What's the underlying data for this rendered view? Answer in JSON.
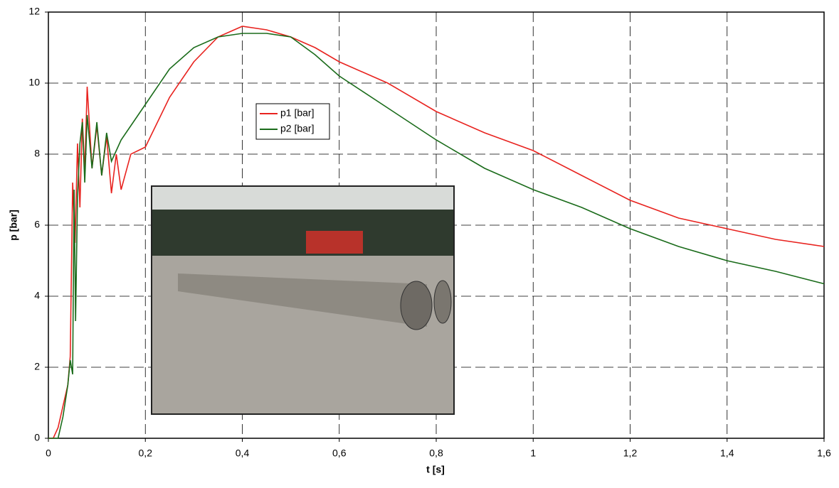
{
  "chart_data": {
    "type": "line",
    "x_label": "t [s]",
    "y_label": "p [bar]",
    "xlim": [
      0,
      1.6
    ],
    "ylim": [
      0,
      12
    ],
    "xticks": [
      0,
      {
        "value": 0.2,
        "label": "0,2"
      },
      {
        "value": 0.4,
        "label": "0,4"
      },
      {
        "value": 0.6,
        "label": "0,6"
      },
      {
        "value": 0.8,
        "label": "0,8"
      },
      1,
      {
        "value": 1.2,
        "label": "1,2"
      },
      {
        "value": 1.4,
        "label": "1,4"
      },
      {
        "value": 1.6,
        "label": "1,6"
      }
    ],
    "yticks": [
      0,
      2,
      4,
      6,
      8,
      10,
      12
    ],
    "grid": true,
    "legend": "upper center",
    "series": [
      {
        "name": "p1 [bar]",
        "color": "#e8231f",
        "x": [
          0,
          0.01,
          0.02,
          0.03,
          0.04,
          0.045,
          0.05,
          0.055,
          0.06,
          0.065,
          0.07,
          0.075,
          0.08,
          0.09,
          0.1,
          0.11,
          0.12,
          0.13,
          0.14,
          0.15,
          0.17,
          0.2,
          0.25,
          0.3,
          0.35,
          0.4,
          0.45,
          0.5,
          0.55,
          0.6,
          0.7,
          0.8,
          0.9,
          1.0,
          1.1,
          1.2,
          1.3,
          1.4,
          1.5,
          1.6
        ],
        "values": [
          0,
          0,
          0.3,
          0.9,
          1.5,
          2.3,
          7.2,
          5.5,
          8.3,
          6.5,
          9.0,
          7.5,
          9.9,
          7.6,
          8.8,
          7.4,
          8.5,
          6.9,
          8.0,
          7.0,
          8.0,
          8.2,
          9.6,
          10.6,
          11.3,
          11.6,
          11.5,
          11.3,
          11.0,
          10.6,
          10.0,
          9.2,
          8.6,
          8.1,
          7.4,
          6.7,
          6.2,
          5.9,
          5.6,
          5.4
        ]
      },
      {
        "name": "p2 [bar]",
        "color": "#1a6b1a",
        "x": [
          0,
          0.02,
          0.03,
          0.04,
          0.045,
          0.05,
          0.053,
          0.056,
          0.06,
          0.065,
          0.07,
          0.075,
          0.08,
          0.09,
          0.1,
          0.11,
          0.12,
          0.13,
          0.15,
          0.2,
          0.25,
          0.3,
          0.35,
          0.4,
          0.45,
          0.5,
          0.55,
          0.6,
          0.7,
          0.8,
          0.9,
          1.0,
          1.1,
          1.2,
          1.3,
          1.4,
          1.5,
          1.6
        ],
        "values": [
          0,
          0,
          0.6,
          1.5,
          2.2,
          1.8,
          7.0,
          3.3,
          6.8,
          8.3,
          8.9,
          7.2,
          9.1,
          7.6,
          8.9,
          7.4,
          8.6,
          7.8,
          8.4,
          9.4,
          10.4,
          11.0,
          11.3,
          11.4,
          11.4,
          11.3,
          10.8,
          10.2,
          9.3,
          8.4,
          7.6,
          7.0,
          6.5,
          5.9,
          5.4,
          5.0,
          4.7,
          4.35
        ]
      }
    ]
  }
}
